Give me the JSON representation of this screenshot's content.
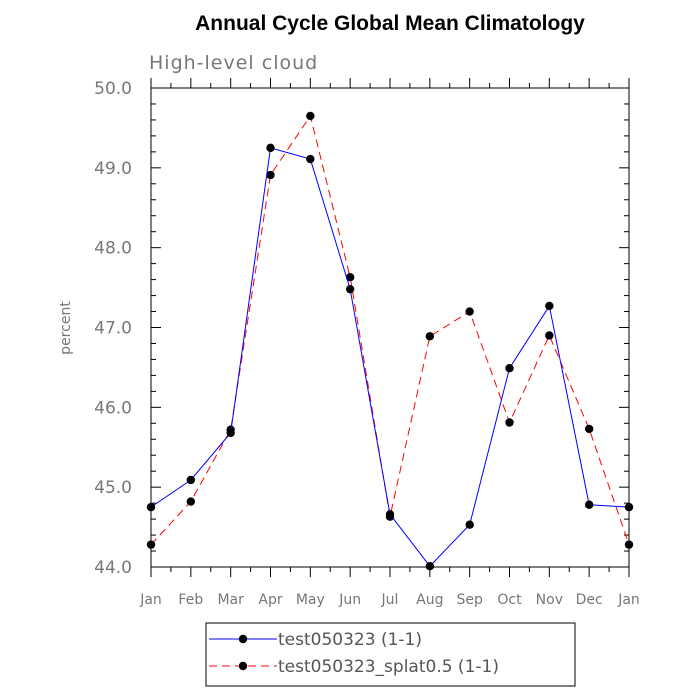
{
  "chart_data": {
    "type": "line",
    "title": "Annual Cycle Global Mean Climatology",
    "subtitle": "High-level cloud",
    "xlabel": "",
    "ylabel": "percent",
    "categories": [
      "Jan",
      "Feb",
      "Mar",
      "Apr",
      "May",
      "Jun",
      "Jul",
      "Aug",
      "Sep",
      "Oct",
      "Nov",
      "Dec",
      "Jan"
    ],
    "ylim": [
      44.0,
      50.0
    ],
    "yticks": [
      "44.0",
      "45.0",
      "46.0",
      "47.0",
      "48.0",
      "49.0",
      "50.0"
    ],
    "grid": false,
    "legend_position": "bottom-center",
    "series": [
      {
        "name": "test050323 (1-1)",
        "color": "#0000ff",
        "dash": "solid",
        "values": [
          44.75,
          45.09,
          45.68,
          49.25,
          49.11,
          47.48,
          44.66,
          44.01,
          44.53,
          46.49,
          47.27,
          44.78,
          44.75
        ]
      },
      {
        "name": "test050323_splat0.5 (1-1)",
        "color": "#ff0000",
        "dash": "dashed",
        "values": [
          44.28,
          44.82,
          45.72,
          48.91,
          49.65,
          47.63,
          44.63,
          46.89,
          47.2,
          45.81,
          46.9,
          45.73,
          44.28
        ]
      }
    ]
  }
}
